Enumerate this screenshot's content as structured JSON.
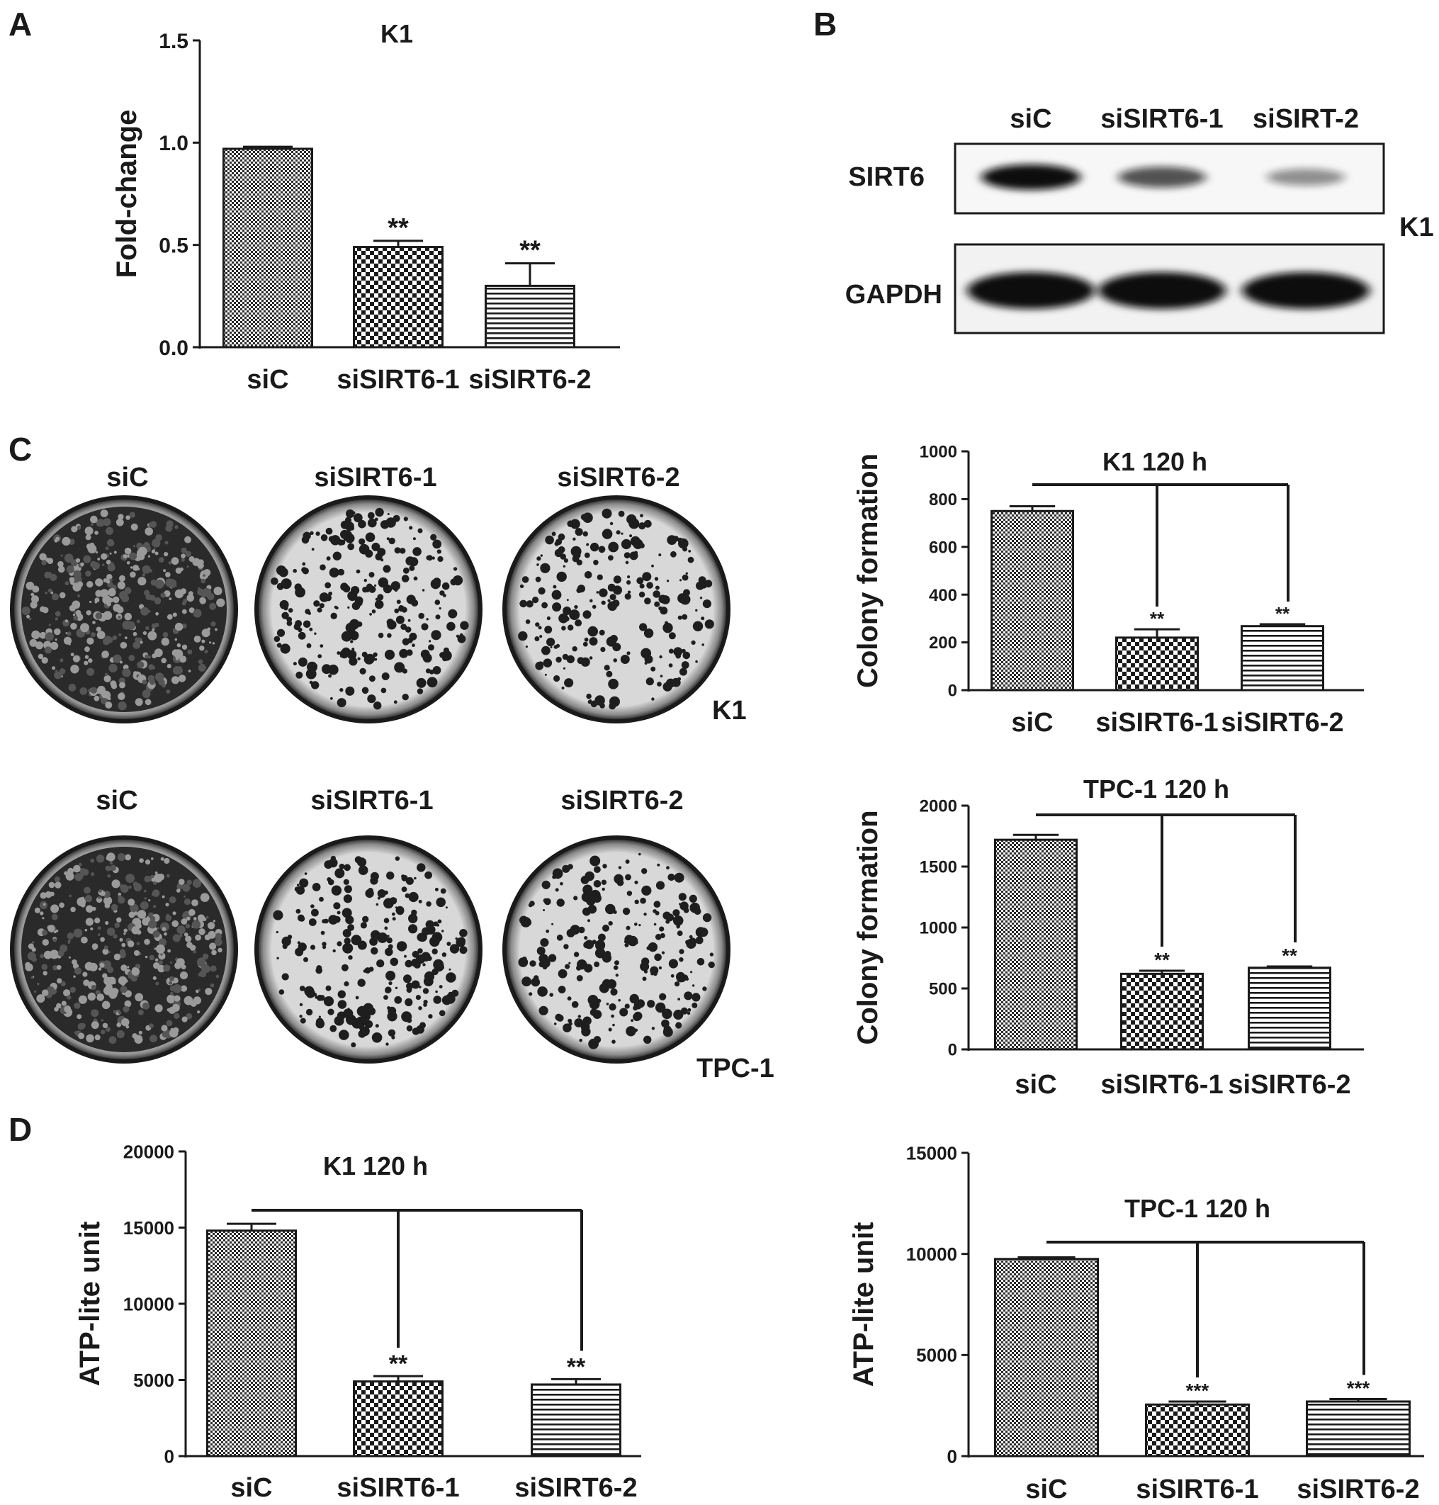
{
  "panel_labels": [
    "A",
    "B",
    "C",
    "D"
  ],
  "colors": {
    "ink": "#1a1a1a",
    "bar_fill": "#ffffff",
    "blot_band": "#111111",
    "plate_bg": "#c8c8c8",
    "plate_colony": "#1e1e1e"
  },
  "chart_data": [
    {
      "id": "A",
      "type": "bar",
      "title": "K1",
      "xlabel": "",
      "ylabel": "Fold-change",
      "categories": [
        "siC",
        "siSIRT6-1",
        "siSIRT6-2"
      ],
      "values": [
        0.97,
        0.49,
        0.3
      ],
      "errors": [
        0.01,
        0.03,
        0.11
      ],
      "significance": [
        "",
        "**",
        "**"
      ],
      "ylim": [
        0,
        1.5
      ],
      "yticks": [
        0.0,
        0.5,
        1.0,
        1.5
      ],
      "ytick_labels": [
        "0.0",
        "0.5",
        "1.0",
        "1.5"
      ],
      "patterns": [
        "fine-check",
        "check",
        "hlines"
      ],
      "bracket": false,
      "grid": false,
      "legend": "none"
    },
    {
      "id": "C-K1",
      "type": "bar",
      "title": "K1  120 h",
      "xlabel": "",
      "ylabel": "Colony formation",
      "categories": [
        "siC",
        "siSIRT6-1",
        "siSIRT6-2"
      ],
      "values": [
        750,
        220,
        268
      ],
      "errors": [
        20,
        35,
        8
      ],
      "significance": [
        "",
        "**",
        "**"
      ],
      "ylim": [
        0,
        1000
      ],
      "yticks": [
        0,
        200,
        400,
        600,
        800,
        1000
      ],
      "ytick_labels": [
        "0",
        "200",
        "400",
        "600",
        "800",
        "1000"
      ],
      "patterns": [
        "fine-check",
        "check",
        "hlines"
      ],
      "bracket": true,
      "grid": false,
      "legend": "none"
    },
    {
      "id": "C-TPC1",
      "type": "bar",
      "title": "TPC-1  120 h",
      "xlabel": "",
      "ylabel": "Colony formation",
      "categories": [
        "siC",
        "siSIRT6-1",
        "siSIRT6-2"
      ],
      "values": [
        1720,
        620,
        670
      ],
      "errors": [
        40,
        25,
        10
      ],
      "significance": [
        "",
        "**",
        "**"
      ],
      "ylim": [
        0,
        2000
      ],
      "yticks": [
        0,
        500,
        1000,
        1500,
        2000
      ],
      "ytick_labels": [
        "0",
        "500",
        "1000",
        "1500",
        "2000"
      ],
      "patterns": [
        "fine-check",
        "check",
        "hlines"
      ],
      "bracket": true,
      "grid": false,
      "legend": "none"
    },
    {
      "id": "D-K1",
      "type": "bar",
      "title": "K1   120 h",
      "xlabel": "",
      "ylabel": "ATP-lite unit",
      "categories": [
        "siC",
        "siSIRT6-1",
        "siSIRT6-2"
      ],
      "values": [
        14800,
        4900,
        4700
      ],
      "errors": [
        450,
        350,
        350
      ],
      "significance": [
        "",
        "**",
        "**"
      ],
      "ylim": [
        0,
        20000
      ],
      "yticks": [
        0,
        5000,
        10000,
        15000,
        20000
      ],
      "ytick_labels": [
        "0",
        "5000",
        "10000",
        "15000",
        "20000"
      ],
      "patterns": [
        "fine-check",
        "check",
        "hlines"
      ],
      "bracket": true,
      "grid": false,
      "legend": "none"
    },
    {
      "id": "D-TPC1",
      "type": "bar",
      "title": "TPC-1 120 h",
      "xlabel": "",
      "ylabel": "ATP-lite unit",
      "categories": [
        "siC",
        "siSIRT6-1",
        "siSIRT6-2"
      ],
      "values": [
        9750,
        2550,
        2700
      ],
      "errors": [
        80,
        150,
        120
      ],
      "significance": [
        "",
        "***",
        "***"
      ],
      "ylim": [
        0,
        15000
      ],
      "yticks": [
        0,
        5000,
        10000,
        15000
      ],
      "ytick_labels": [
        "0",
        "5000",
        "10000",
        "15000"
      ],
      "patterns": [
        "fine-check",
        "check",
        "hlines"
      ],
      "bracket": true,
      "grid": false,
      "legend": "none"
    }
  ],
  "western_blot": {
    "cell_line": "K1",
    "lanes": [
      "siC",
      "siSIRT6-1",
      "siSIRT-2"
    ],
    "rows": [
      {
        "protein": "SIRT6",
        "intensity": [
          1.0,
          0.6,
          0.25
        ]
      },
      {
        "protein": "GAPDH",
        "intensity": [
          1.0,
          1.0,
          1.0
        ]
      }
    ]
  },
  "colony_plates": {
    "columns": [
      "siC",
      "siSIRT6-1",
      "siSIRT6-2"
    ],
    "rows": [
      {
        "cell_line": "K1",
        "colony_density": [
          0.85,
          0.45,
          0.4
        ]
      },
      {
        "cell_line": "TPC-1",
        "colony_density": [
          0.85,
          0.45,
          0.45
        ]
      }
    ]
  }
}
